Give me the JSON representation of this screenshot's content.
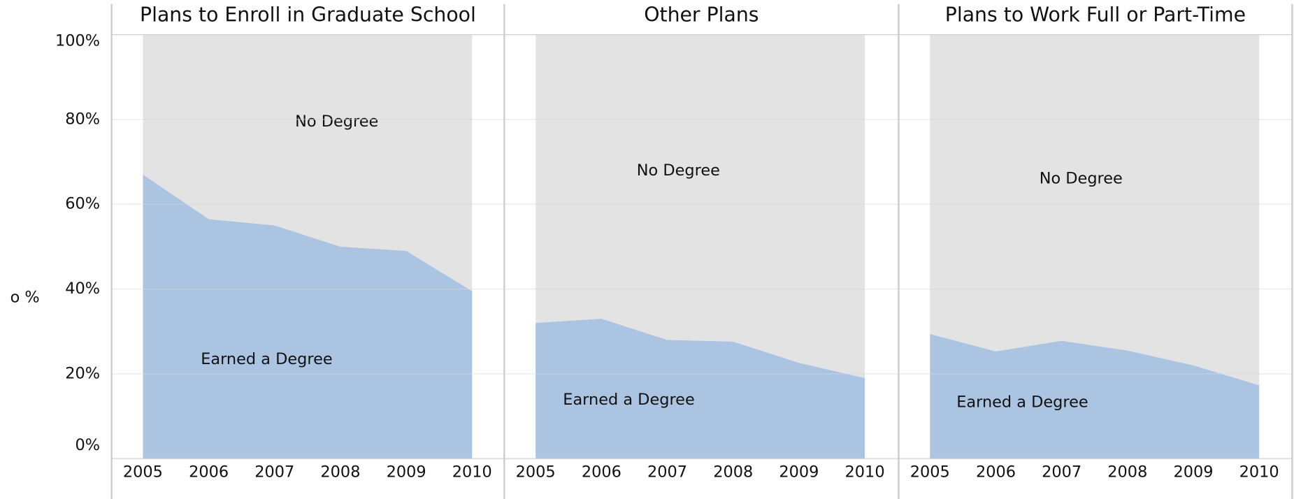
{
  "chart_data": [
    {
      "type": "area",
      "title": "Plans to Enroll in Graduate School",
      "y_label": "o %",
      "x": [
        "2005",
        "2006",
        "2007",
        "2008",
        "2009",
        "2010"
      ],
      "series": [
        {
          "name": "Earned a Degree",
          "color": "#aac4e2",
          "values": [
            67,
            56.5,
            55,
            50,
            49,
            39.5
          ]
        },
        {
          "name": "No Degree",
          "color": "#e3e3e3",
          "values": [
            33,
            43.5,
            45,
            50,
            51,
            60.5
          ]
        }
      ],
      "ylim": [
        0,
        100
      ],
      "yticks": [
        {
          "value": 0,
          "label": "0%"
        },
        {
          "value": 20,
          "label": "20%"
        },
        {
          "value": 40,
          "label": "40%"
        },
        {
          "value": 60,
          "label": "60%"
        },
        {
          "value": 80,
          "label": "80%"
        },
        {
          "value": 100,
          "label": "100%"
        }
      ]
    },
    {
      "type": "area",
      "title": "Other Plans",
      "x": [
        "2005",
        "2006",
        "2007",
        "2008",
        "2009",
        "2010"
      ],
      "series": [
        {
          "name": "Earned a Degree",
          "color": "#aac4e2",
          "values": [
            32,
            33,
            28,
            27.6,
            22.6,
            19
          ]
        },
        {
          "name": "No Degree",
          "color": "#e3e3e3",
          "values": [
            68,
            67,
            72,
            72.4,
            77.4,
            81
          ]
        }
      ],
      "ylim": [
        0,
        100
      ],
      "yticks": [
        0,
        20,
        40,
        60,
        80,
        100
      ]
    },
    {
      "type": "area",
      "title": "Plans to Work Full or Part-Time",
      "x": [
        "2005",
        "2006",
        "2007",
        "2008",
        "2009",
        "2010"
      ],
      "series": [
        {
          "name": "Earned a Degree",
          "color": "#aac4e2",
          "values": [
            29.4,
            25.3,
            27.8,
            25.5,
            22,
            17.3
          ]
        },
        {
          "name": "No Degree",
          "color": "#e3e3e3",
          "values": [
            70.6,
            74.7,
            72.2,
            74.5,
            78,
            82.7
          ]
        }
      ],
      "ylim": [
        0,
        100
      ],
      "yticks": [
        0,
        20,
        40,
        60,
        80,
        100
      ]
    }
  ]
}
